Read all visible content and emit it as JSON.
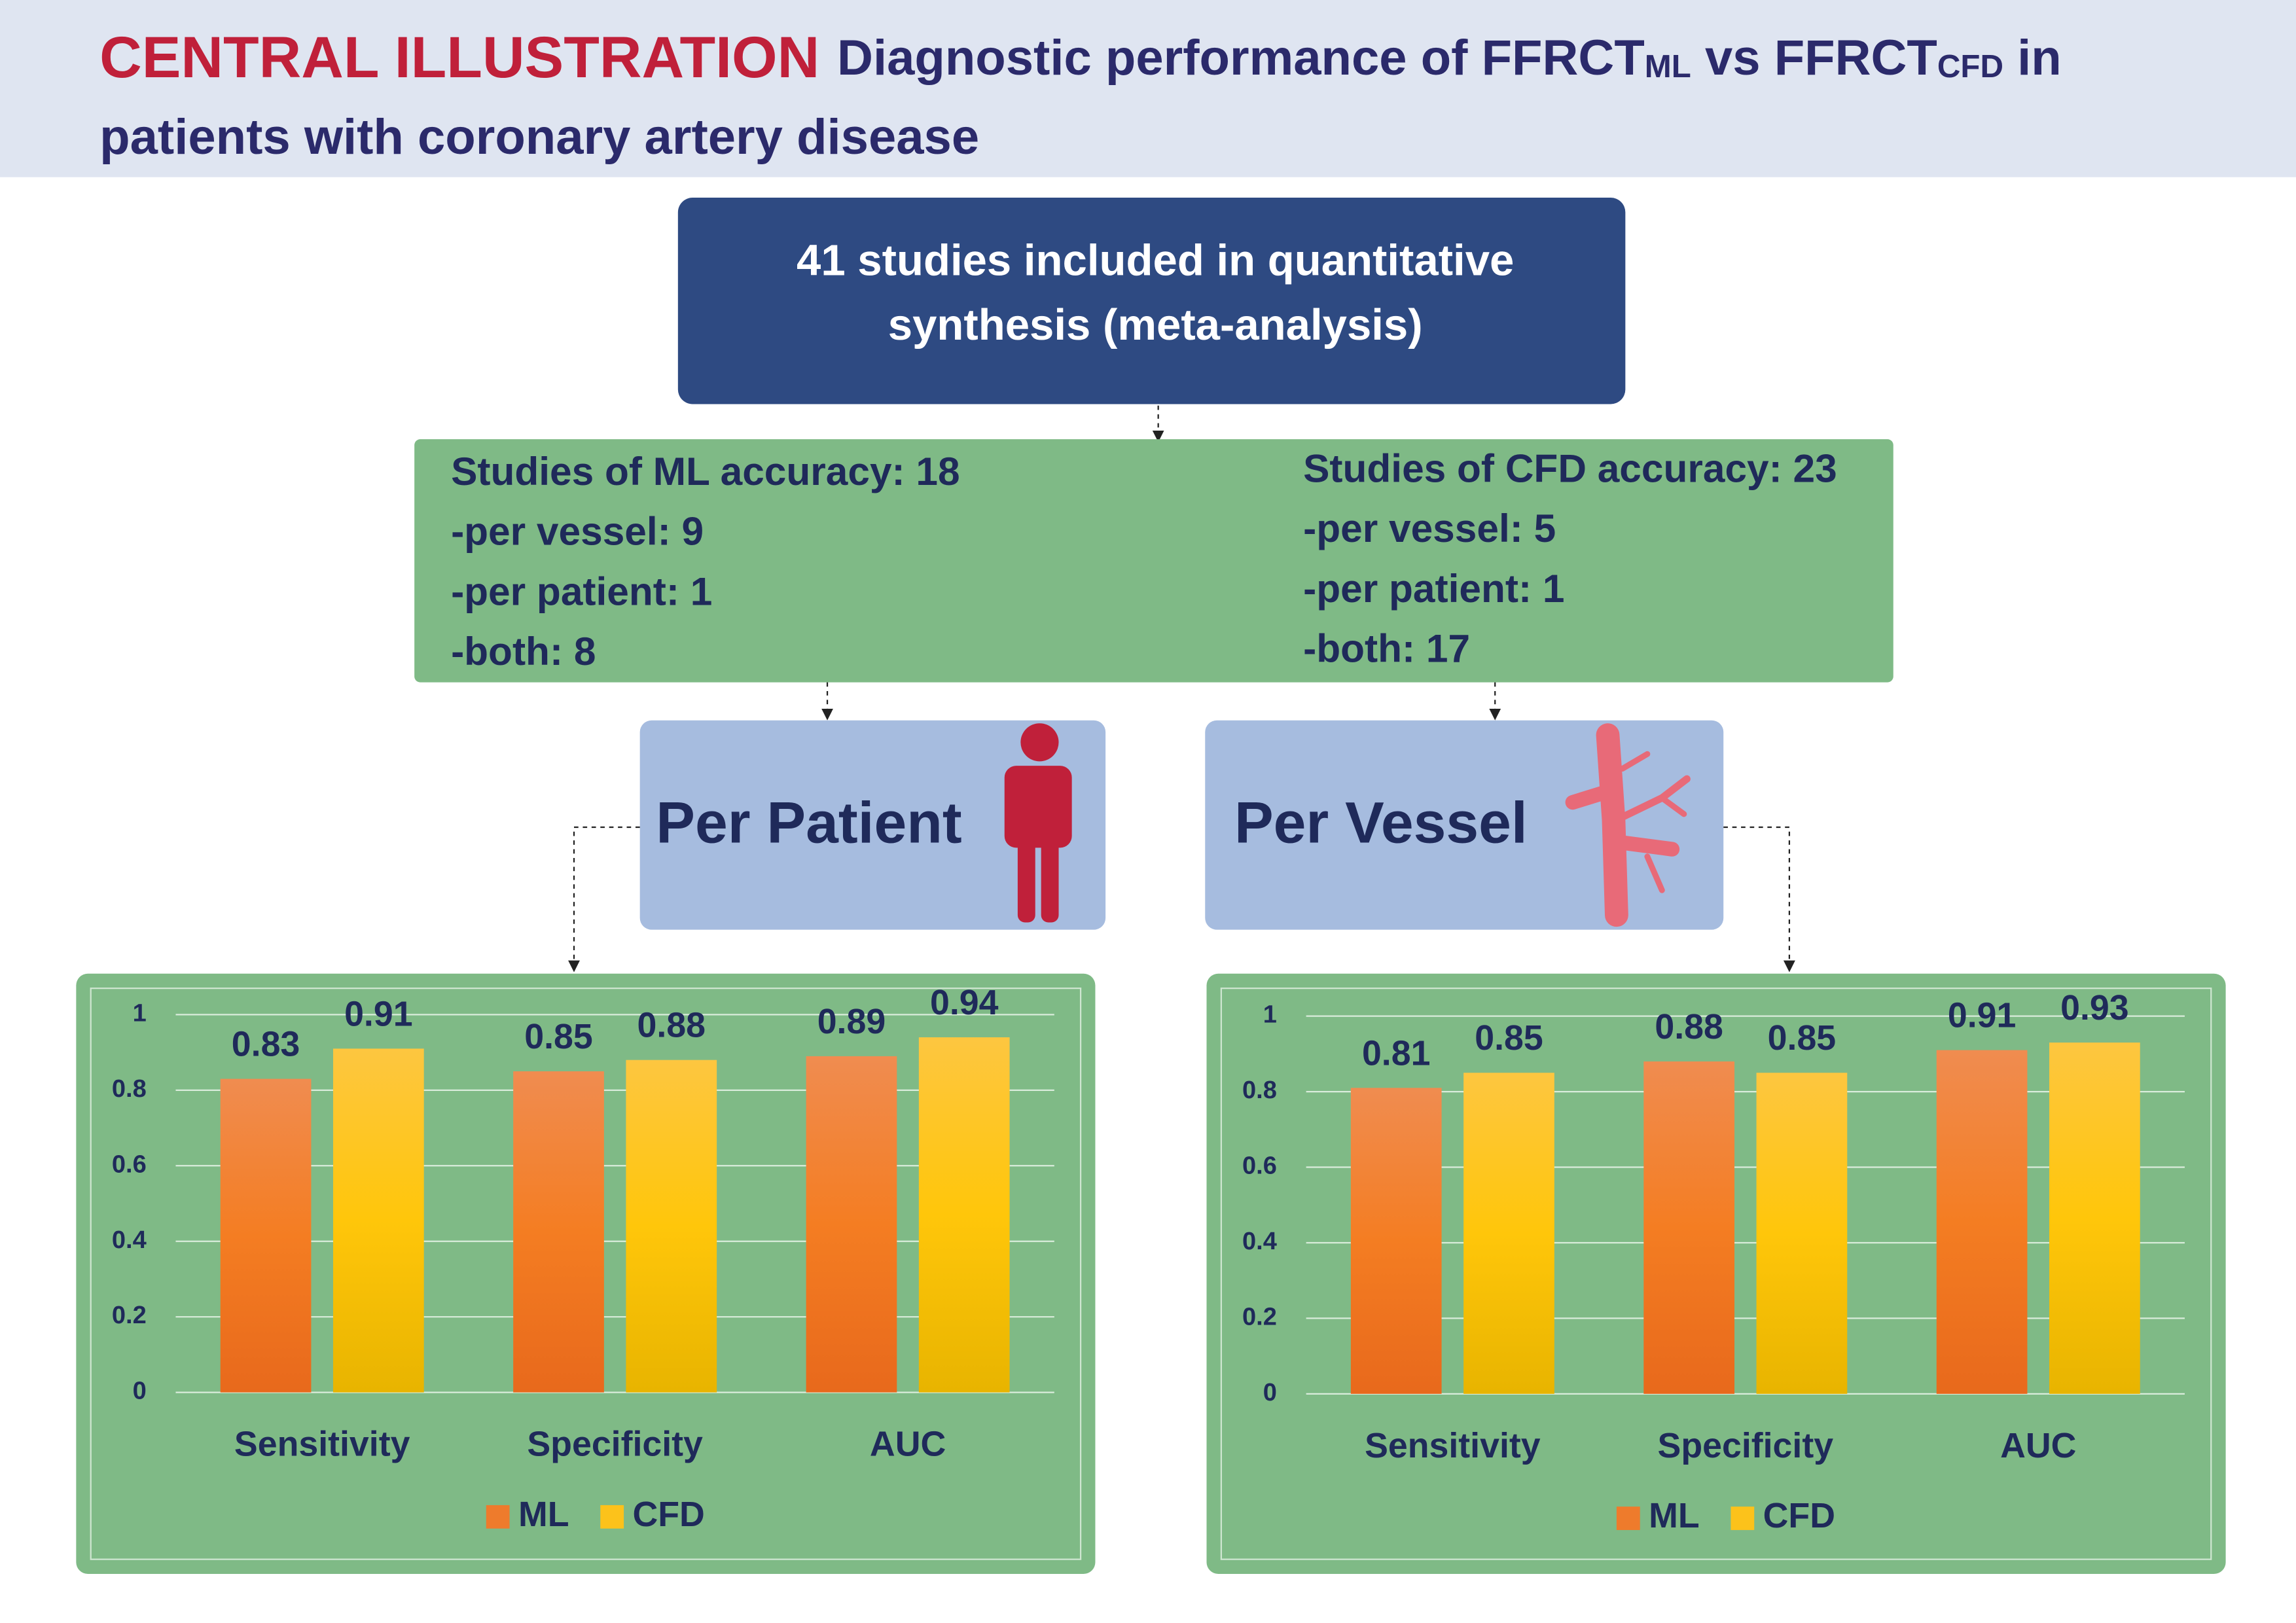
{
  "header": {
    "label": "CENTRAL ILLUSTRATION",
    "title_parts": [
      "Diagnostic performance of FFRCT",
      "ML",
      " vs FFRCT",
      "CFD",
      " in",
      "patients with coronary artery disease"
    ]
  },
  "flow": {
    "top_box": [
      "41 studies included in quantitative",
      "synthesis (meta-analysis)"
    ],
    "ml_box": [
      "Studies of ML accuracy: 18",
      "-per vessel: 9",
      "-per patient: 1",
      "-both: 8"
    ],
    "cfd_box": [
      "Studies of CFD accuracy: 23",
      "-per vessel: 5",
      "-per patient: 1",
      "-both: 17"
    ],
    "groups": [
      "Per Patient",
      "Per Vessel"
    ]
  },
  "chart_data": [
    {
      "type": "bar",
      "categories": [
        "Sensitivity",
        "Specificity",
        "AUC"
      ],
      "series": [
        {
          "name": "ML",
          "color": "#ee7b2c",
          "values": [
            0.83,
            0.85,
            0.89
          ]
        },
        {
          "name": "CFD",
          "color": "#fcc21b",
          "values": [
            0.91,
            0.88,
            0.94
          ]
        }
      ],
      "ylim": [
        0,
        1
      ],
      "yticks": [
        0,
        0.2,
        0.4,
        0.6,
        0.8,
        1
      ],
      "grid": true,
      "legend": "bottom"
    },
    {
      "type": "bar",
      "categories": [
        "Sensitivity",
        "Specificity",
        "AUC"
      ],
      "series": [
        {
          "name": "ML",
          "color": "#ee7b2c",
          "values": [
            0.81,
            0.88,
            0.91
          ]
        },
        {
          "name": "CFD",
          "color": "#fcc21b",
          "values": [
            0.85,
            0.85,
            0.93
          ]
        }
      ],
      "ylim": [
        0,
        1
      ],
      "yticks": [
        0,
        0.2,
        0.4,
        0.6,
        0.8,
        1
      ],
      "grid": true,
      "legend": "bottom"
    }
  ]
}
